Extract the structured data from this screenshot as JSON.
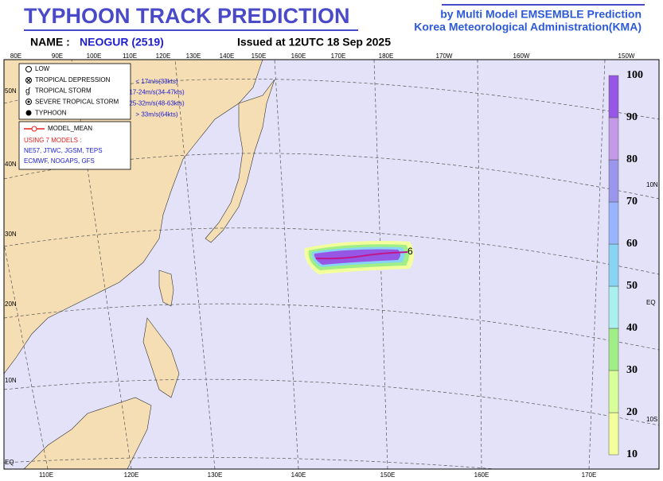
{
  "header": {
    "title": "TYPHOON  TRACK  PREDICTION",
    "credit_line1": "by Multi Model EMSEMBLE Prediction",
    "credit_line2": "Korea Meteorological Administration(KMA)",
    "name_label": "NAME :",
    "name": "NEOGUR (2519)",
    "issued": "Issued at  12UTC 18 Sep 2025"
  },
  "map": {
    "top_labels": [
      "80E",
      "90E",
      "100E",
      "110E",
      "120E",
      "130E",
      "140E",
      "150E",
      "160E",
      "170E",
      "180E",
      "170W",
      "160W",
      "150W"
    ],
    "left_labels": [
      "50N",
      "40N",
      "30N",
      "20N",
      "10N",
      "EQ"
    ],
    "bottom_labels": [
      "110E",
      "120E",
      "130E",
      "140E",
      "150E",
      "160E",
      "170E"
    ],
    "right_labels": [
      "10N",
      "EQ",
      "10S"
    ]
  },
  "legend": {
    "intensity": [
      {
        "name": "LOW",
        "range": ""
      },
      {
        "name": "TROPICAL DEPRESSION",
        "range": "< 17m/s(33kts)"
      },
      {
        "name": "TROPICAL STORM",
        "range": "17-24m/s(34-47kts)"
      },
      {
        "name": "SEVERE TROPICAL STORM",
        "range": "25-32m/s(48-63kts)"
      },
      {
        "name": "TYPHOON",
        "range": "> 33m/s(64kts)"
      }
    ],
    "mean": "MODEL_MEAN",
    "models_title": "USING 7 MODELS :",
    "models_line1": "NE57, JTWC, JGSM, TEPS",
    "models_line2": "ECMWF, NOGAPS, GFS"
  },
  "colorbar": {
    "levels": [
      10,
      20,
      30,
      40,
      50,
      60,
      70,
      80,
      90,
      100
    ],
    "colors": [
      "#f2ff9a",
      "#d8ff9a",
      "#a0ee88",
      "#aaf0f0",
      "#88d4f4",
      "#9ab4ff",
      "#9a96ec",
      "#c49ae8",
      "#9656e6"
    ]
  }
}
